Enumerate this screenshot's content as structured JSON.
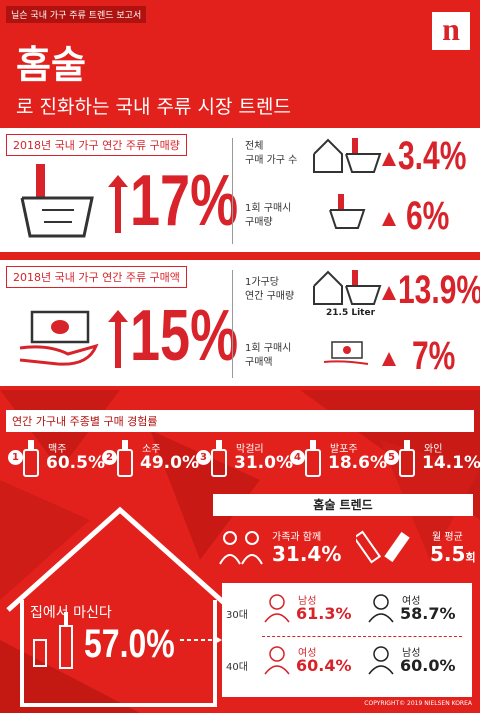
{
  "header": {
    "tag": "닐슨 국내 가구 주류 트렌드 보고서",
    "title": "홈술",
    "subtitle": "로 진화하는 국내 주류 시장 트렌드",
    "logo": "n"
  },
  "volume": {
    "label": "2018년 국내 가구 연간 주류 구매량",
    "main": "17%",
    "items": [
      {
        "lines": [
          "전체",
          "구매 가구 수"
        ],
        "value": "3.4%"
      },
      {
        "lines": [
          "1회 구매시",
          "구매량"
        ],
        "value": "6%"
      }
    ]
  },
  "spend": {
    "label": "2018년 국내 가구 연간 주류 구매액",
    "main": "15%",
    "items": [
      {
        "lines": [
          "1가구당",
          "연간 구매량"
        ],
        "value": "13.9%",
        "note": "21.5 Liter"
      },
      {
        "lines": [
          "1회 구매시",
          "구매액"
        ],
        "value": "7%"
      }
    ]
  },
  "drinks": {
    "title": "연간 가구내 주종별 구매 경험률",
    "items": [
      {
        "rank": "1",
        "name": "맥주",
        "value": "60.5%"
      },
      {
        "rank": "2",
        "name": "소주",
        "value": "49.0%"
      },
      {
        "rank": "3",
        "name": "막걸리",
        "value": "31.0%"
      },
      {
        "rank": "4",
        "name": "발포주",
        "value": "18.6%"
      },
      {
        "rank": "5",
        "name": "와인",
        "value": "14.1%"
      }
    ]
  },
  "trends": {
    "title": "홈술 트렌드",
    "family": {
      "label": "가족과 함께",
      "value": "31.4%"
    },
    "monthly": {
      "label": "월 평균",
      "value": "5.5",
      "unit": "회"
    }
  },
  "home": {
    "label": "집에서 마신다",
    "value": "57.0%"
  },
  "ages": [
    {
      "age": "30대",
      "left": {
        "gender": "남성",
        "value": "61.3%"
      },
      "right": {
        "gender": "여성",
        "value": "58.7%"
      }
    },
    {
      "age": "40대",
      "left": {
        "gender": "여성",
        "value": "60.4%"
      },
      "right": {
        "gender": "남성",
        "value": "60.0%"
      }
    }
  ],
  "copyright": "COPYRIGHT© 2019 NIELSEN KOREA"
}
